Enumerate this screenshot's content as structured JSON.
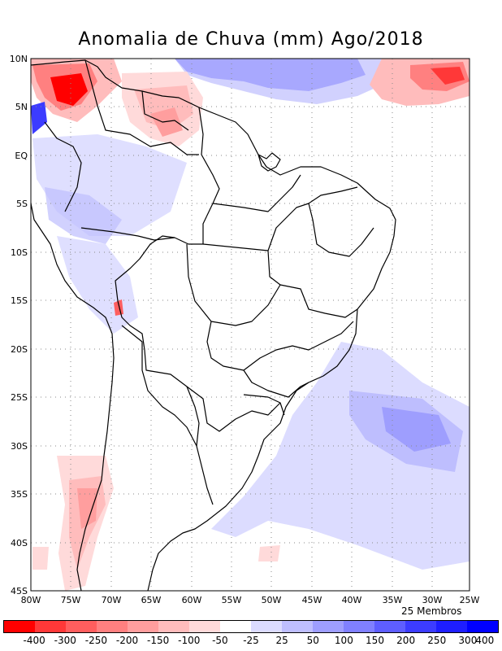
{
  "map": {
    "title": "Anomalia de Chuva (mm) Ago/2018",
    "members_label": "25 Membros",
    "lon_labels": [
      "80W",
      "75W",
      "70W",
      "65W",
      "60W",
      "55W",
      "50W",
      "45W",
      "40W",
      "35W",
      "30W",
      "25W"
    ],
    "lat_labels": [
      "10N",
      "5N",
      "EQ",
      "5S",
      "10S",
      "15S",
      "20S",
      "25S",
      "30S",
      "35S",
      "40S",
      "45S"
    ],
    "colorbar": {
      "labels": [
        "-400",
        "-300",
        "-250",
        "-200",
        "-150",
        "-100",
        "-50",
        "-25",
        "25",
        "50",
        "100",
        "150",
        "200",
        "250",
        "300",
        "400"
      ],
      "colors": [
        "#ff0000",
        "#ff3838",
        "#ff5e5e",
        "#ff8080",
        "#ff9e9e",
        "#ffbcbc",
        "#ffdada",
        "#ffffff",
        "#dcdcff",
        "#bebefe",
        "#9e9efe",
        "#8080ff",
        "#5e5eff",
        "#3c3cff",
        "#1e1eff",
        "#0000ff"
      ]
    }
  }
}
